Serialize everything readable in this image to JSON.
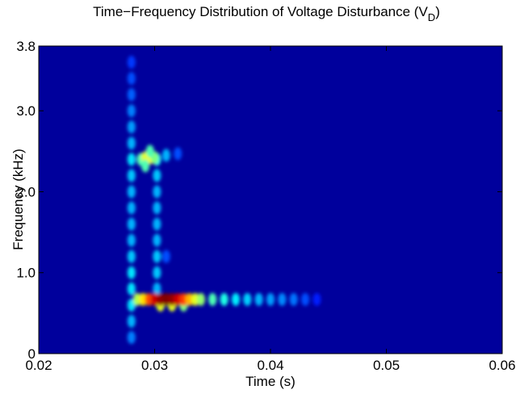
{
  "chart_data": {
    "type": "spectrogram",
    "title": "Time−Frequency Distribution of  Voltage Disturbance (V",
    "title_subscript": "D",
    "title_end": ")",
    "xlabel": "Time (s)",
    "ylabel": "Frequency (kHz)",
    "xlim": [
      0.02,
      0.06
    ],
    "xticks": [
      0.02,
      0.03,
      0.04,
      0.05,
      0.06
    ],
    "ylim": [
      0,
      3.8
    ],
    "yticks": [
      0,
      {
        "value": 1,
        "label": "1.0"
      },
      {
        "value": 2,
        "label": "2.0"
      },
      {
        "value": 3,
        "label": "3.0"
      },
      3.8
    ],
    "zlim": [
      0,
      1
    ],
    "x": [
      0.028,
      0.028,
      0.028,
      0.028,
      0.028,
      0.028,
      0.028,
      0.028,
      0.028,
      0.028,
      0.028,
      0.028,
      0.028,
      0.028,
      0.028,
      0.028,
      0.028,
      0.028,
      0.0302,
      0.0302,
      0.0302,
      0.0302,
      0.0302,
      0.0302,
      0.0302,
      0.0302,
      0.0302,
      0.031,
      0.0288,
      0.0292,
      0.0296,
      0.03,
      0.0292,
      0.0296,
      0.031,
      0.032,
      0.0305,
      0.0315,
      0.0325,
      0.0285,
      0.029,
      0.0295,
      0.03,
      0.0305,
      0.031,
      0.0315,
      0.032,
      0.0325,
      0.033,
      0.0335,
      0.034,
      0.035,
      0.036,
      0.037,
      0.038,
      0.039,
      0.04,
      0.041,
      0.042,
      0.043,
      0.044
    ],
    "y": [
      0.2,
      0.4,
      0.6,
      0.8,
      1.0,
      1.2,
      1.4,
      1.6,
      1.8,
      2.0,
      2.2,
      2.4,
      2.6,
      2.8,
      3.0,
      3.2,
      3.4,
      3.6,
      0.8,
      1.0,
      1.2,
      1.4,
      1.6,
      1.8,
      2.0,
      2.2,
      2.4,
      1.2,
      2.4,
      2.42,
      2.42,
      2.42,
      2.32,
      2.5,
      2.45,
      2.47,
      0.6,
      0.6,
      0.6,
      0.67,
      0.67,
      0.67,
      0.67,
      0.67,
      0.67,
      0.67,
      0.67,
      0.67,
      0.67,
      0.67,
      0.67,
      0.67,
      0.67,
      0.67,
      0.67,
      0.67,
      0.67,
      0.67,
      0.67,
      0.67,
      0.67
    ],
    "z": [
      0.25,
      0.3,
      0.35,
      0.35,
      0.35,
      0.32,
      0.3,
      0.3,
      0.3,
      0.3,
      0.32,
      0.35,
      0.3,
      0.28,
      0.25,
      0.22,
      0.2,
      0.18,
      0.3,
      0.32,
      0.32,
      0.3,
      0.3,
      0.3,
      0.3,
      0.32,
      0.38,
      0.2,
      0.45,
      0.6,
      0.62,
      0.5,
      0.45,
      0.45,
      0.3,
      0.2,
      0.6,
      0.6,
      0.5,
      0.55,
      0.65,
      0.8,
      0.92,
      0.98,
      1.0,
      0.98,
      0.92,
      0.82,
      0.7,
      0.6,
      0.52,
      0.45,
      0.4,
      0.36,
      0.33,
      0.3,
      0.28,
      0.26,
      0.24,
      0.2,
      0.15
    ]
  }
}
